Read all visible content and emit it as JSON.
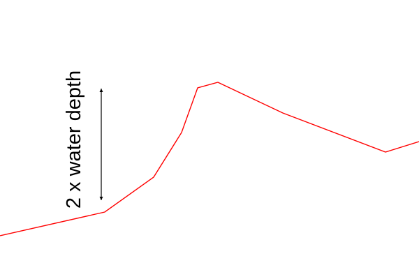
{
  "diagram": {
    "dimension_label": "2 x water depth",
    "profile_color": "#ff0000",
    "arrow_color": "#000000"
  }
}
